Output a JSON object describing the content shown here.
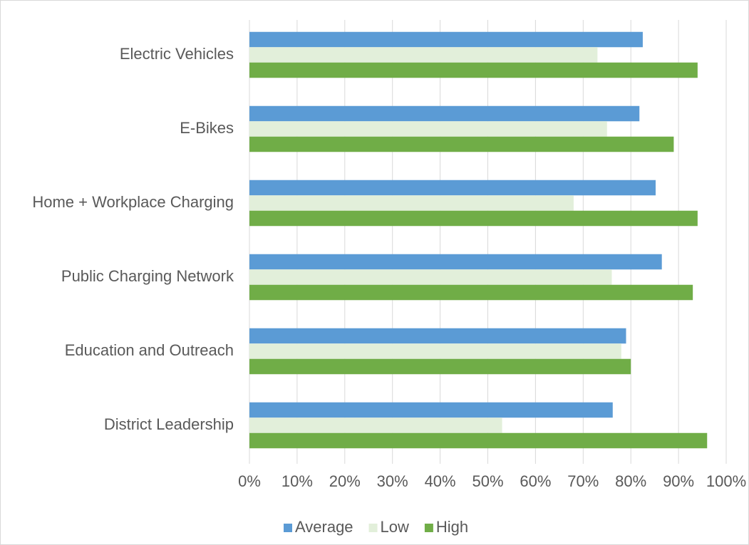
{
  "chart_data": {
    "type": "bar",
    "orientation": "horizontal",
    "categories": [
      "Electric Vehicles",
      "E-Bikes",
      "Home + Workplace Charging",
      "Public Charging Network",
      "Education and Outreach",
      "District Leadership"
    ],
    "series": [
      {
        "name": "Average",
        "color": "#5b9bd5",
        "values": [
          82.5,
          81.8,
          85.2,
          86.5,
          79,
          76.2
        ]
      },
      {
        "name": "Low",
        "color": "#e2efda",
        "values": [
          73,
          75,
          68,
          76,
          78,
          53
        ]
      },
      {
        "name": "High",
        "color": "#70ad47",
        "values": [
          94,
          89,
          94,
          93,
          80,
          96
        ]
      }
    ],
    "xlim": [
      0,
      100
    ],
    "xticks": [
      {
        "value": 0,
        "label": "0%"
      },
      {
        "value": 10,
        "label": "10%"
      },
      {
        "value": 20,
        "label": "20%"
      },
      {
        "value": 30,
        "label": "30%"
      },
      {
        "value": 40,
        "label": "40%"
      },
      {
        "value": 50,
        "label": "50%"
      },
      {
        "value": 60,
        "label": "60%"
      },
      {
        "value": 70,
        "label": "70%"
      },
      {
        "value": 80,
        "label": "80%"
      },
      {
        "value": 90,
        "label": "90%"
      },
      {
        "value": 100,
        "label": "100%"
      }
    ],
    "grid": true,
    "legend": "bottom"
  }
}
